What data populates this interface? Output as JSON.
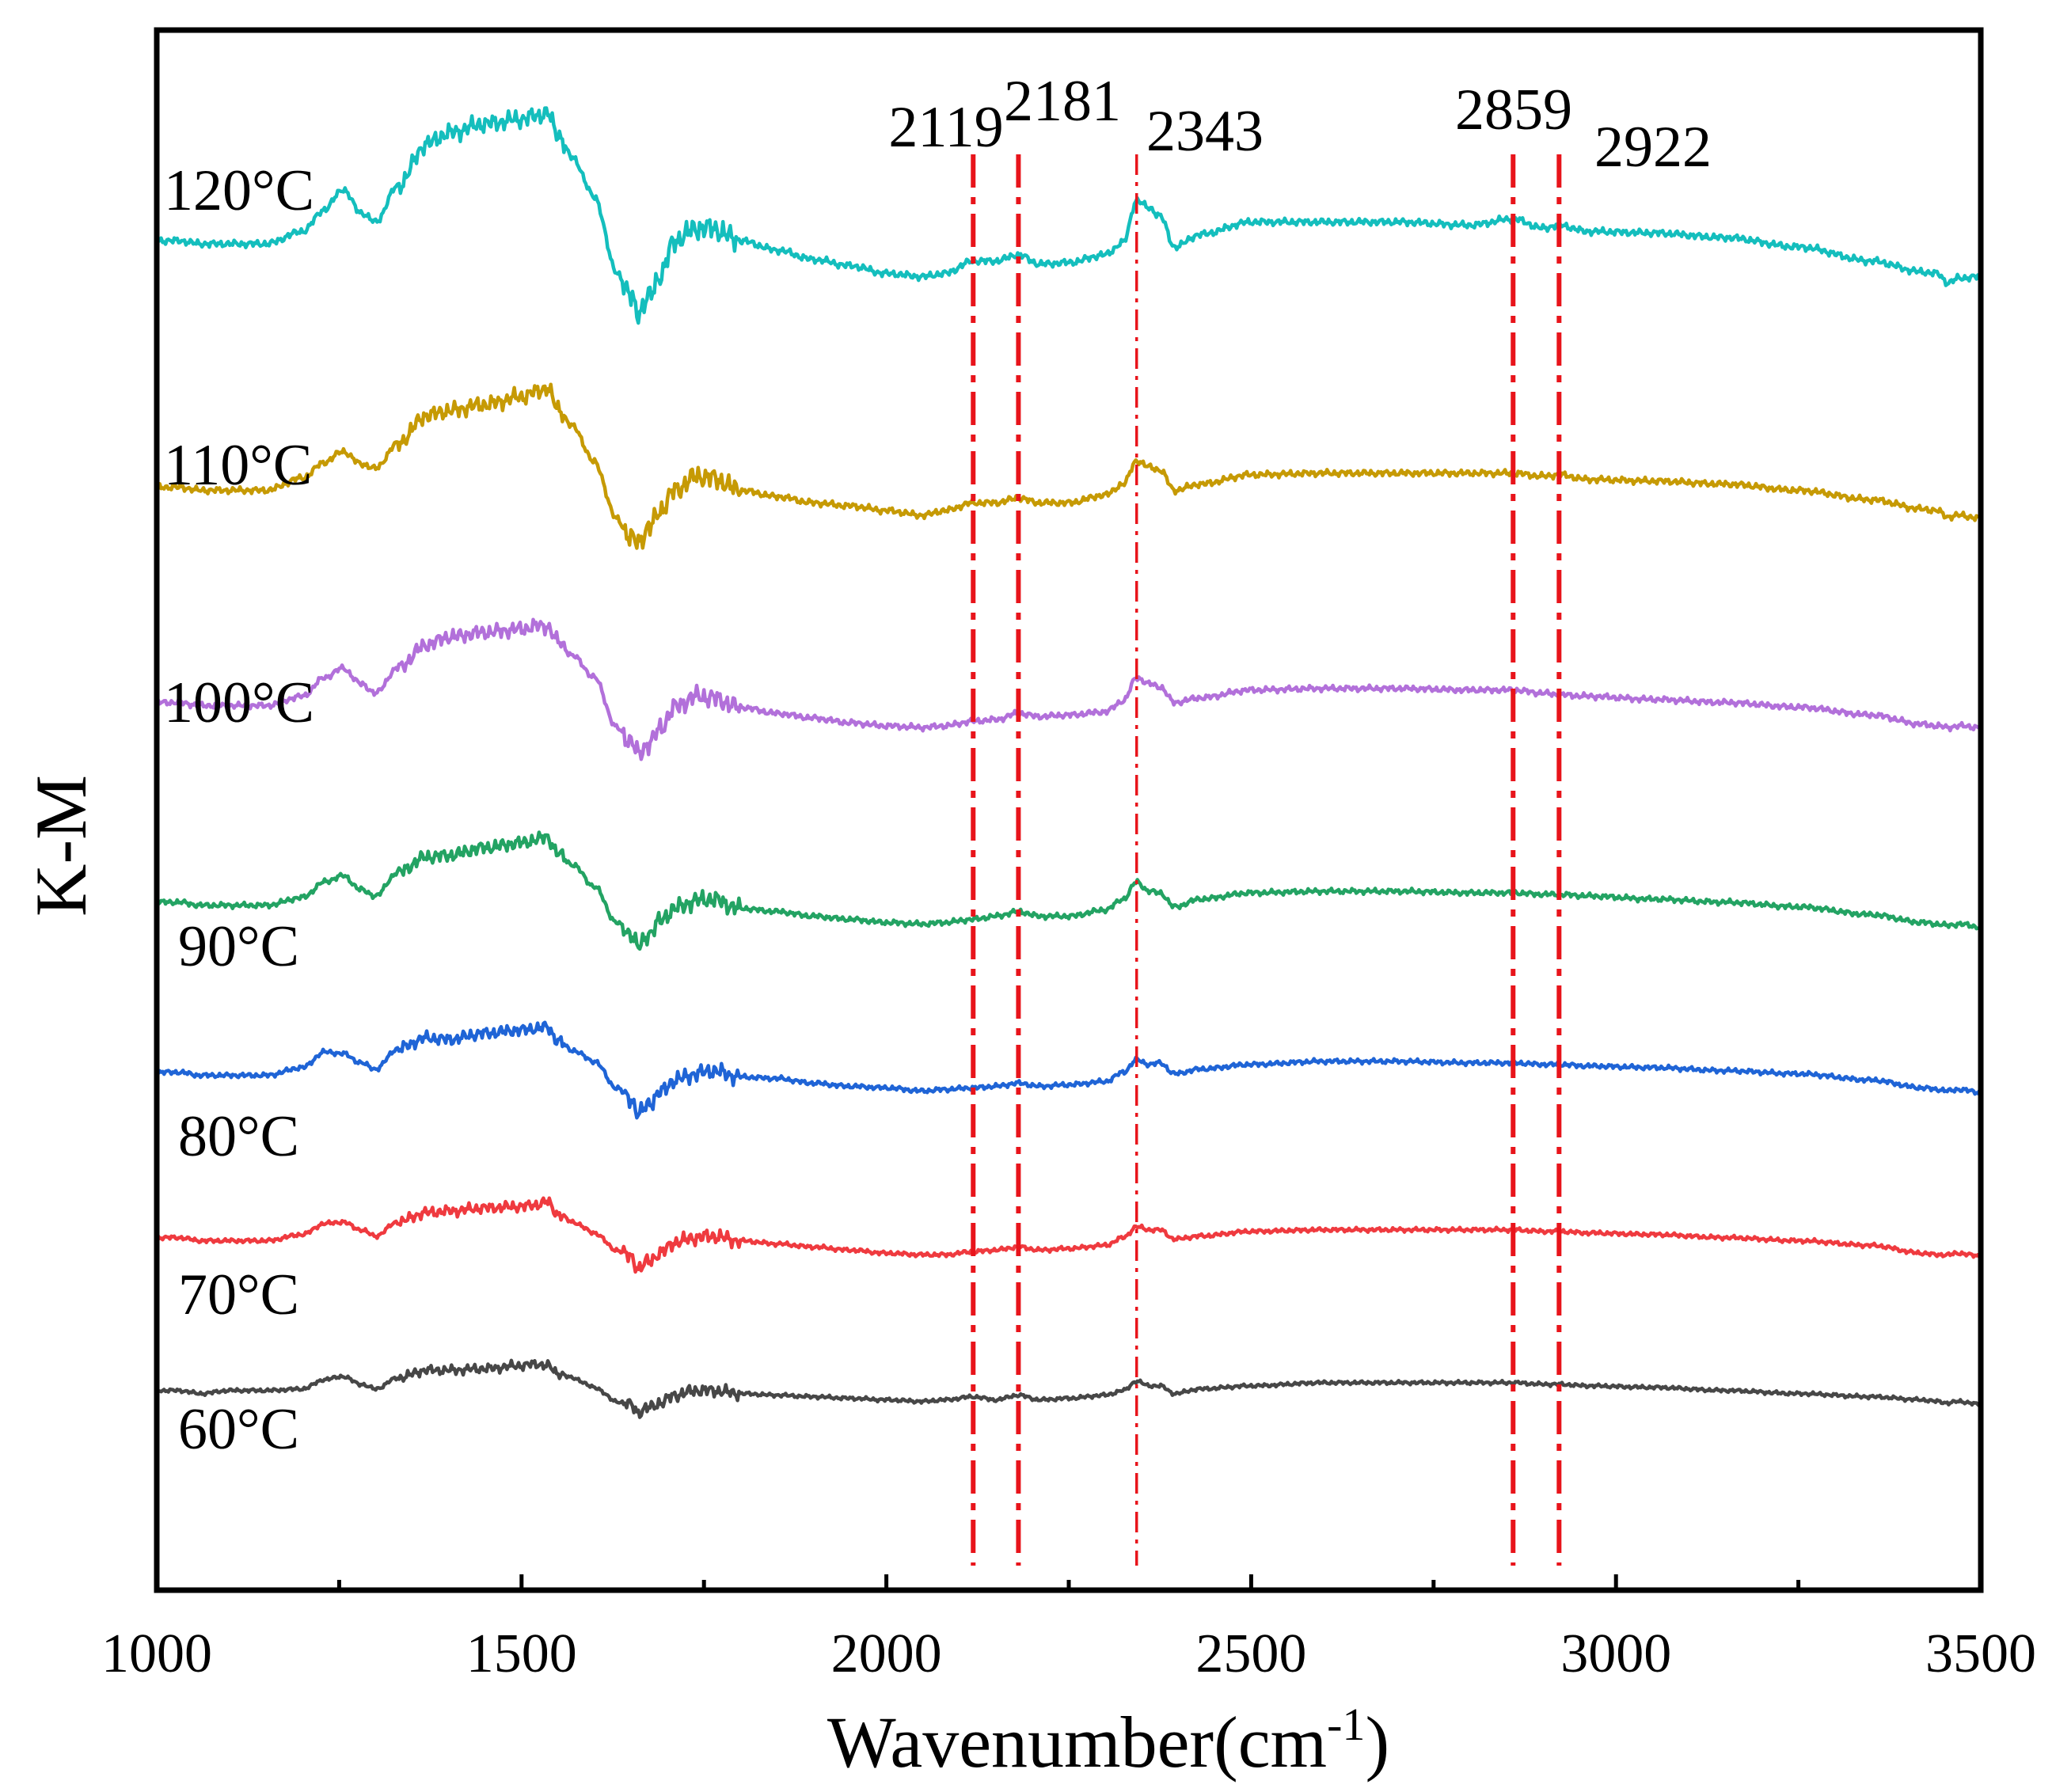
{
  "chart_data": {
    "type": "line",
    "title": "",
    "xlabel": "Wavenumber(cm",
    "xlabel_sup": "-1",
    "xlabel_close": ")",
    "ylabel": "K-M",
    "xlim": [
      1000,
      3500
    ],
    "ylim": [
      0,
      100
    ],
    "x_ticks": [
      1000,
      1500,
      2000,
      2500,
      3000,
      3500
    ],
    "x_tick_labels": [
      "1000",
      "1500",
      "2000",
      "2500",
      "3000",
      "3500"
    ],
    "y_ticks_shown": false,
    "grid": false,
    "legend": "inline labels at left of each curve",
    "reference_lines": [
      {
        "x": 2119,
        "label": "2119",
        "style": "dash-dot",
        "color": "#e8141b"
      },
      {
        "x": 2181,
        "label": "2181",
        "style": "dash-dot",
        "color": "#e8141b"
      },
      {
        "x": 2343,
        "label": "2343",
        "style": "dash-dot thin",
        "color": "#e8141b"
      },
      {
        "x": 2859,
        "label": "2859",
        "style": "dash-dot",
        "color": "#e8141b"
      },
      {
        "x": 2922,
        "label": "2922",
        "style": "dash-dot",
        "color": "#e8141b"
      }
    ],
    "profile_x": [
      1000,
      1030,
      1060,
      1100,
      1150,
      1200,
      1230,
      1255,
      1280,
      1300,
      1330,
      1370,
      1400,
      1450,
      1500,
      1520,
      1535,
      1550,
      1570,
      1600,
      1630,
      1650,
      1660,
      1675,
      1690,
      1710,
      1740,
      1760,
      1800,
      1850,
      1900,
      1950,
      2000,
      2050,
      2080,
      2119,
      2150,
      2181,
      2210,
      2250,
      2300,
      2325,
      2343,
      2360,
      2375,
      2395,
      2430,
      2500,
      2600,
      2700,
      2800,
      2859,
      2900,
      2922,
      2960,
      3050,
      3150,
      3250,
      3350,
      3420,
      3440,
      3455,
      3470,
      3500
    ],
    "series": [
      {
        "name": "120°C",
        "label": "120°C",
        "color": "#14bebd",
        "offset": 86.5,
        "amplitude": 1.0,
        "values": [
          0.0,
          0.0,
          -0.2,
          -0.2,
          -0.2,
          0.6,
          2.0,
          3.3,
          1.8,
          1.2,
          3.5,
          6.2,
          6.9,
          7.5,
          7.8,
          8.0,
          8.2,
          6.8,
          5.3,
          2.8,
          -2.0,
          -3.6,
          -4.6,
          -3.6,
          -2.2,
          0.0,
          0.8,
          0.8,
          0.0,
          -0.6,
          -1.2,
          -1.6,
          -2.1,
          -2.3,
          -2.1,
          -1.3,
          -1.3,
          -0.9,
          -1.5,
          -1.4,
          -0.9,
          -0.1,
          2.6,
          2.1,
          1.6,
          -0.4,
          0.4,
          1.2,
          1.2,
          1.2,
          1.0,
          1.4,
          0.8,
          1.0,
          0.6,
          0.5,
          0.2,
          -0.4,
          -1.3,
          -2.0,
          -2.1,
          -2.7,
          -2.4,
          -2.3
        ]
      },
      {
        "name": "110°C",
        "label": "110°C",
        "color": "#c69a04",
        "offset": 70.7,
        "amplitude": 1.0,
        "values": [
          0.0,
          0.0,
          -0.2,
          -0.2,
          -0.2,
          0.6,
          1.6,
          2.3,
          1.5,
          1.2,
          2.8,
          4.6,
          4.9,
          5.3,
          5.8,
          6.1,
          6.4,
          5.0,
          3.9,
          1.6,
          -2.0,
          -3.3,
          -3.5,
          -2.6,
          -1.5,
          -0.2,
          0.7,
          0.6,
          -0.2,
          -0.6,
          -1.0,
          -1.2,
          -1.5,
          -1.8,
          -1.5,
          -1.0,
          -1.0,
          -0.7,
          -1.0,
          -1.0,
          -0.5,
          0.2,
          1.7,
          1.3,
          1.1,
          -0.2,
          0.2,
          0.8,
          0.9,
          0.9,
          0.9,
          0.9,
          0.7,
          0.8,
          0.5,
          0.4,
          0.2,
          -0.2,
          -0.8,
          -1.4,
          -1.5,
          -1.9,
          -1.8,
          -2.0
        ]
      },
      {
        "name": "100°C",
        "label": "100°C",
        "color": "#b270da",
        "offset": 56.9,
        "amplitude": 1.0,
        "values": [
          0.0,
          0.0,
          -0.2,
          -0.2,
          -0.2,
          0.4,
          1.6,
          2.2,
          1.2,
          0.6,
          2.2,
          3.7,
          4.2,
          4.5,
          4.7,
          4.9,
          4.9,
          3.9,
          3.0,
          1.6,
          -1.6,
          -2.5,
          -3.3,
          -2.6,
          -1.7,
          -0.3,
          0.4,
          0.3,
          -0.3,
          -0.7,
          -1.0,
          -1.3,
          -1.5,
          -1.6,
          -1.5,
          -1.2,
          -1.1,
          -0.7,
          -0.9,
          -0.8,
          -0.6,
          0.1,
          1.6,
          1.2,
          1.0,
          0.0,
          0.3,
          0.8,
          0.9,
          0.9,
          0.8,
          0.8,
          0.6,
          0.5,
          0.4,
          0.2,
          0.0,
          -0.3,
          -0.8,
          -1.4,
          -1.5,
          -1.6,
          -1.5,
          -1.6
        ]
      },
      {
        "name": "90°C",
        "label": "90°C",
        "color": "#23a363",
        "offset": 44.1,
        "amplitude": 1.0,
        "values": [
          0.0,
          0.0,
          -0.2,
          -0.2,
          -0.2,
          0.3,
          1.3,
          1.7,
          0.8,
          0.4,
          1.9,
          2.9,
          3.0,
          3.5,
          3.8,
          4.0,
          4.2,
          3.1,
          2.4,
          1.0,
          -1.3,
          -2.0,
          -2.9,
          -2.0,
          -1.2,
          -0.4,
          0.1,
          0.2,
          -0.4,
          -0.6,
          -0.9,
          -1.1,
          -1.3,
          -1.4,
          -1.3,
          -1.1,
          -0.9,
          -0.6,
          -0.9,
          -0.9,
          -0.5,
          0.2,
          1.3,
          0.7,
          0.6,
          -0.3,
          0.2,
          0.6,
          0.7,
          0.7,
          0.6,
          0.6,
          0.5,
          0.5,
          0.4,
          0.2,
          0.0,
          -0.3,
          -0.8,
          -1.3,
          -1.4,
          -1.5,
          -1.4,
          -1.6
        ]
      },
      {
        "name": "80°C",
        "label": "80°C",
        "color": "#1f64d6",
        "offset": 33.2,
        "amplitude": 1.0,
        "values": [
          0.0,
          0.0,
          -0.2,
          -0.2,
          -0.2,
          0.3,
          1.3,
          1.2,
          0.6,
          0.2,
          1.5,
          2.2,
          2.1,
          2.5,
          2.7,
          2.8,
          2.9,
          2.0,
          1.4,
          0.7,
          -1.0,
          -1.7,
          -2.7,
          -2.0,
          -1.3,
          -0.5,
          -0.1,
          0.1,
          -0.3,
          -0.4,
          -0.7,
          -0.9,
          -1.0,
          -1.2,
          -1.1,
          -1.0,
          -0.9,
          -0.7,
          -0.9,
          -0.8,
          -0.6,
          0.0,
          0.8,
          0.5,
          0.6,
          -0.1,
          0.2,
          0.5,
          0.7,
          0.7,
          0.6,
          0.6,
          0.5,
          0.5,
          0.4,
          0.3,
          0.1,
          -0.1,
          -0.5,
          -1.0,
          -1.1,
          -1.2,
          -1.1,
          -1.3
        ]
      },
      {
        "name": "70°C",
        "label": "70°C",
        "color": "#ef3a3f",
        "offset": 22.6,
        "amplitude": 1.0,
        "values": [
          0.0,
          0.0,
          -0.2,
          -0.2,
          -0.2,
          0.2,
          0.9,
          1.0,
          0.5,
          0.1,
          1.0,
          1.6,
          1.7,
          1.9,
          2.0,
          2.1,
          2.3,
          1.5,
          1.0,
          0.3,
          -0.8,
          -1.2,
          -2.0,
          -1.5,
          -1.0,
          -0.3,
          0.0,
          0.1,
          -0.2,
          -0.4,
          -0.6,
          -0.8,
          -1.0,
          -1.1,
          -1.1,
          -0.9,
          -0.8,
          -0.6,
          -0.8,
          -0.7,
          -0.5,
          0.0,
          0.7,
          0.5,
          0.5,
          -0.1,
          0.1,
          0.4,
          0.5,
          0.5,
          0.5,
          0.5,
          0.4,
          0.4,
          0.3,
          0.2,
          0.0,
          -0.2,
          -0.5,
          -1.0,
          -1.1,
          -1.1,
          -1.0,
          -1.2
        ]
      },
      {
        "name": "60°C",
        "label": "60°C",
        "color": "#474747",
        "offset": 12.8,
        "amplitude": 1.0,
        "values": [
          0.0,
          0.0,
          -0.2,
          0.0,
          0.0,
          0.1,
          0.7,
          0.9,
          0.4,
          0.1,
          0.8,
          1.3,
          1.3,
          1.4,
          1.6,
          1.7,
          1.6,
          1.1,
          0.8,
          0.2,
          -0.7,
          -0.9,
          -1.4,
          -1.1,
          -0.8,
          -0.3,
          0.0,
          0.0,
          -0.2,
          -0.3,
          -0.4,
          -0.5,
          -0.6,
          -0.7,
          -0.6,
          -0.4,
          -0.6,
          -0.3,
          -0.6,
          -0.5,
          -0.3,
          0.0,
          0.6,
          0.3,
          0.3,
          -0.2,
          0.1,
          0.3,
          0.5,
          0.5,
          0.5,
          0.5,
          0.4,
          0.4,
          0.3,
          0.2,
          0.0,
          -0.2,
          -0.4,
          -0.6,
          -0.7,
          -0.8,
          -0.7,
          -0.9
        ]
      }
    ]
  }
}
